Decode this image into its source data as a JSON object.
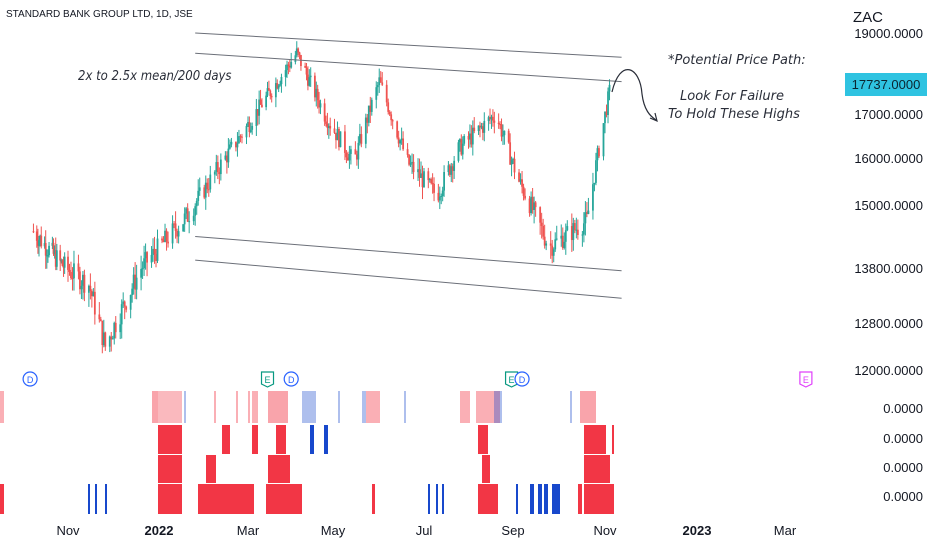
{
  "header": {
    "symbol_line": "STANDARD BANK GROUP LTD, 1D, JSE",
    "currency": "ZAC"
  },
  "last_price": "17737.0000",
  "annotations": {
    "channel_note": "2x to 2.5x mean/200 days",
    "path_title": "*Potential Price Path:",
    "path_line1": "Look For Failure",
    "path_line2": "To Hold These Highs"
  },
  "chart_data": {
    "type": "candlestick",
    "price_axis_ticks": [
      "19000.0000",
      "17000.0000",
      "16000.0000",
      "15000.0000",
      "13800.0000",
      "12800.0000",
      "12000.0000"
    ],
    "price_axis_values": [
      19000,
      17000,
      16000,
      15000,
      13800,
      12800,
      12000
    ],
    "x_axis_labels": [
      "Nov",
      "2022",
      "Mar",
      "May",
      "Jul",
      "Sep",
      "Nov",
      "2023",
      "Mar"
    ],
    "x_axis_bold": [
      "2022",
      "2023"
    ],
    "approx_path": [
      [
        "2021-10-01",
        14500
      ],
      [
        "2021-10-25",
        13900
      ],
      [
        "2021-11-15",
        13500
      ],
      [
        "2021-11-26",
        12400
      ],
      [
        "2021-12-20",
        13800
      ],
      [
        "2022-01-20",
        14800
      ],
      [
        "2022-02-20",
        16300
      ],
      [
        "2022-03-10",
        17200
      ],
      [
        "2022-04-05",
        18500
      ],
      [
        "2022-04-25",
        17000
      ],
      [
        "2022-05-15",
        15900
      ],
      [
        "2022-06-01",
        17800
      ],
      [
        "2022-06-20",
        15900
      ],
      [
        "2022-07-10",
        15200
      ],
      [
        "2022-07-25",
        16200
      ],
      [
        "2022-08-20",
        17000
      ],
      [
        "2022-09-05",
        15500
      ],
      [
        "2022-09-25",
        14200
      ],
      [
        "2022-10-20",
        14700
      ],
      [
        "2022-11-05",
        17737
      ]
    ],
    "channels": [
      {
        "name": "upper",
        "lines": [
          [
            [
              "2022-01-25",
              19000
            ],
            [
              "2022-11-12",
              18400
            ]
          ],
          [
            [
              "2022-01-25",
              18500
            ],
            [
              "2022-11-12",
              17800
            ]
          ]
        ]
      },
      {
        "name": "lower",
        "lines": [
          [
            [
              "2022-01-25",
              14400
            ],
            [
              "2022-11-12",
              13750
            ]
          ],
          [
            [
              "2022-01-25",
              13950
            ],
            [
              "2022-11-12",
              13250
            ]
          ]
        ]
      }
    ],
    "event_markers": [
      {
        "label": "D",
        "date": "2021-09-28",
        "color": "#2962ff"
      },
      {
        "label": "E",
        "date": "2022-03-15",
        "color": "#089981"
      },
      {
        "label": "D",
        "date": "2022-04-01",
        "color": "#2962ff"
      },
      {
        "label": "E",
        "date": "2022-08-31",
        "color": "#089981"
      },
      {
        "label": "D",
        "date": "2022-09-07",
        "color": "#2962ff"
      },
      {
        "label": "E",
        "date": "2023-03-15",
        "color": "#e040fb"
      }
    ],
    "indicator_rows": [
      "0.0000",
      "0.0000",
      "0.0000",
      "0.0000"
    ],
    "colors": {
      "up": "#26a69a",
      "down": "#ef5350",
      "indicator_red": "#f23645",
      "indicator_blue": "#1848cc",
      "accent": "#2fc3e1"
    }
  }
}
